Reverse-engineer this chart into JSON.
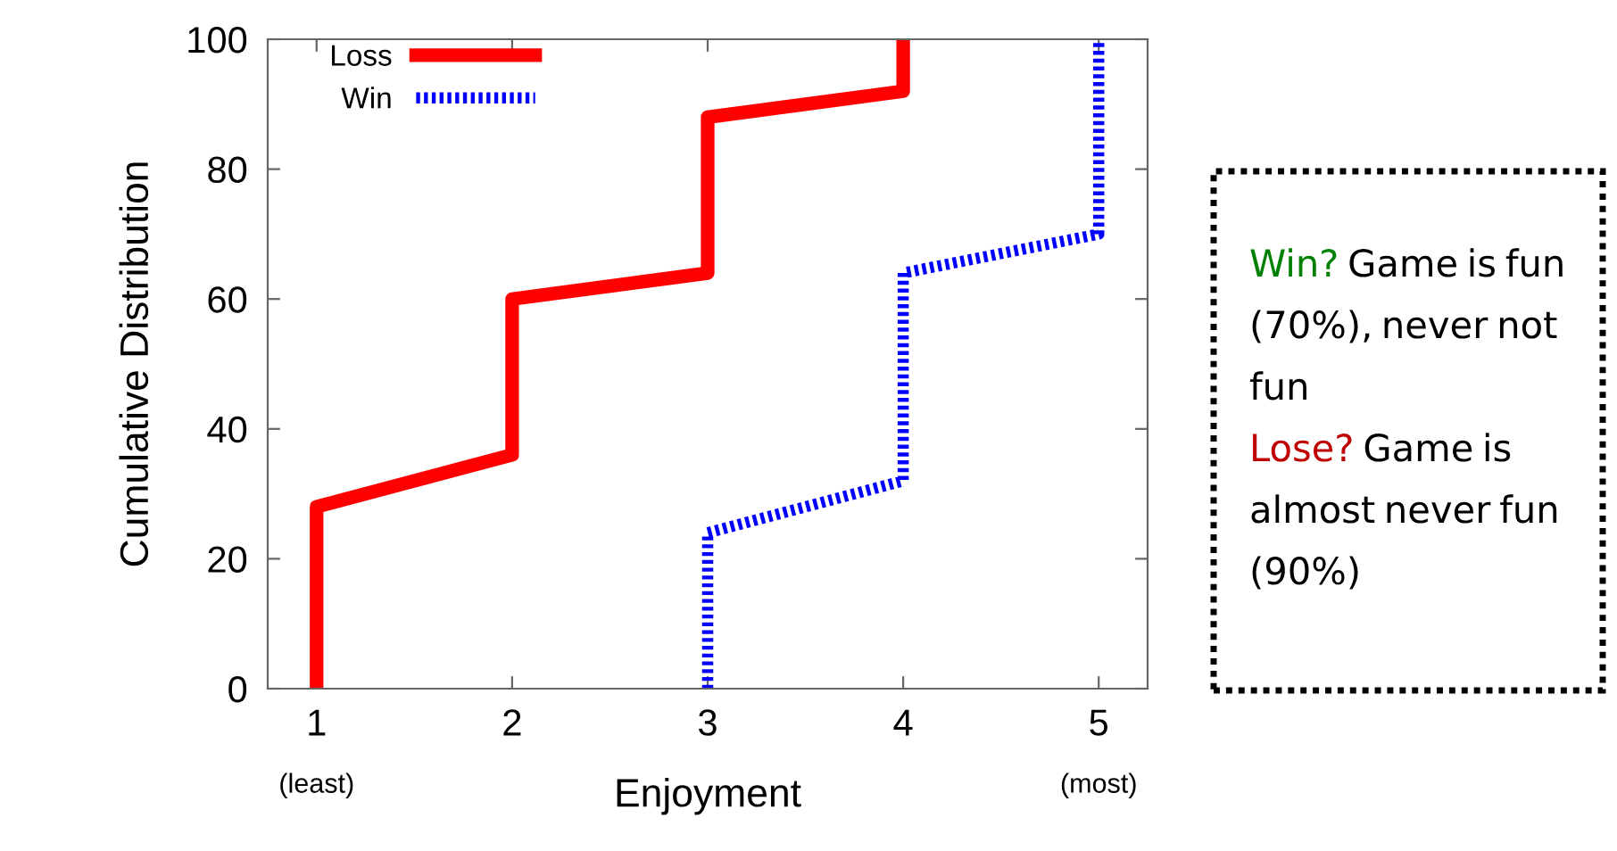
{
  "chart_data": {
    "type": "line",
    "xlabel": "Enjoyment",
    "ylabel": "Cumulative Distribution",
    "xlim": [
      0.75,
      5.25
    ],
    "xticks": [
      1,
      2,
      3,
      4,
      5
    ],
    "ylim": [
      0,
      100
    ],
    "yticks": [
      0,
      20,
      40,
      60,
      80,
      100
    ],
    "grid": false,
    "legend": "top left",
    "marker": "none",
    "series": [
      {
        "name": "Loss",
        "color": "#ff0000",
        "line_style": "solid",
        "x": [
          1,
          1,
          2,
          2,
          3,
          3,
          4,
          4
        ],
        "values": [
          0,
          28,
          36,
          60,
          64,
          88,
          92,
          100
        ]
      },
      {
        "name": "Win",
        "color": "#0000ff",
        "line_style": "dotted",
        "x": [
          3,
          3,
          4,
          4,
          5,
          5
        ],
        "values": [
          0,
          24,
          32,
          64,
          70,
          100
        ]
      }
    ],
    "annotations": [
      "(least)",
      "(most)",
      "Win?",
      "Game is fun (70%), never not fun",
      "Lose?",
      "Game is almost never fun (90%)"
    ]
  }
}
